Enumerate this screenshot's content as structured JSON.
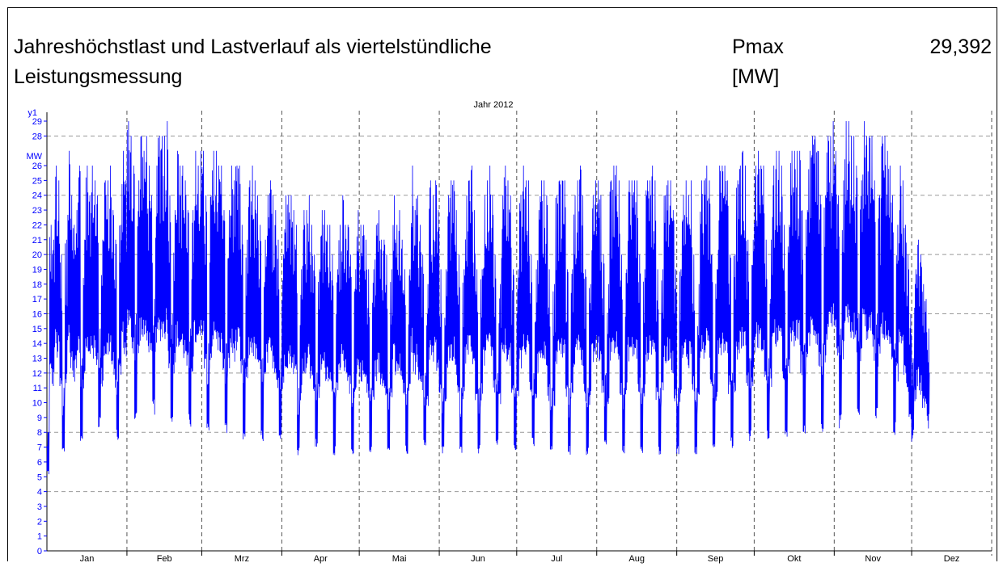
{
  "header": {
    "title_line1": "Jahreshöchstlast und Lastverlauf als viertelstündliche",
    "title_line2": "Leistungsmessung",
    "pmax_label": "Pmax",
    "pmax_unit": "[MW]",
    "pmax_value": "29,392"
  },
  "chart_data": {
    "type": "line",
    "title": "Jahr 2012",
    "ylabel": "y1",
    "yunit": "MW",
    "ylim": [
      0,
      30
    ],
    "yticks": [
      0,
      1,
      2,
      3,
      4,
      5,
      6,
      7,
      8,
      9,
      10,
      11,
      12,
      13,
      14,
      15,
      16,
      17,
      18,
      19,
      20,
      21,
      22,
      23,
      24,
      25,
      26,
      28,
      29
    ],
    "xlim": [
      "2012-01-01",
      "2012-12-31"
    ],
    "xticks": [
      "Jan",
      "Feb",
      "Mrz",
      "Apr",
      "Mai",
      "Jun",
      "Jul",
      "Aug",
      "Sep",
      "Okt",
      "Nov",
      "Dez"
    ],
    "month_days": [
      31,
      29,
      31,
      30,
      31,
      30,
      31,
      31,
      30,
      31,
      30,
      31
    ],
    "grid": true,
    "series": [
      {
        "values": [
          8,
          22,
          21,
          26,
          25,
          20,
          11,
          21,
          27,
          24,
          22,
          23,
          26,
          13,
          21,
          26,
          24,
          26,
          25,
          24,
          15,
          21,
          25,
          25,
          26,
          23,
          21,
          13,
          22,
          27,
          25,
          29,
          28,
          26,
          16,
          25,
          28,
          27,
          28,
          26,
          24,
          17,
          26,
          28,
          28,
          28,
          29,
          24,
          16,
          23,
          27,
          26,
          26,
          25,
          23,
          15,
          23,
          27,
          26,
          27,
          27,
          24,
          14,
          24,
          27,
          27,
          26,
          26,
          23,
          14,
          23,
          26,
          25,
          26,
          26,
          22,
          13,
          21,
          25,
          26,
          25,
          24,
          22,
          13,
          21,
          24,
          25,
          24,
          23,
          21,
          13,
          20,
          24,
          24,
          24,
          23,
          22,
          11,
          19,
          23,
          23,
          24,
          22,
          20,
          12,
          19,
          23,
          23,
          22,
          22,
          20,
          11,
          19,
          22,
          24,
          22,
          22,
          20,
          11,
          19,
          23,
          22,
          22,
          21,
          19,
          11,
          19,
          22,
          23,
          21,
          21,
          20,
          11,
          19,
          24,
          22,
          23,
          21,
          19,
          11,
          19,
          26,
          23,
          24,
          22,
          20,
          12,
          18,
          25,
          24,
          25,
          23,
          19,
          11,
          19,
          24,
          25,
          25,
          23,
          20,
          11,
          19,
          24,
          25,
          26,
          23,
          19,
          11,
          19,
          24,
          25,
          26,
          24,
          20,
          12,
          18,
          24,
          26,
          25,
          24,
          19,
          11,
          19,
          24,
          26,
          25,
          25,
          20,
          12,
          19,
          23,
          25,
          25,
          24,
          19,
          11,
          18,
          24,
          25,
          25,
          25,
          19,
          11,
          19,
          24,
          25,
          26,
          24,
          19,
          11,
          18,
          24,
          25,
          25,
          24,
          20,
          12,
          18,
          25,
          26,
          26,
          25,
          20,
          11,
          19,
          25,
          25,
          25,
          25,
          20,
          11,
          19,
          25,
          25,
          26,
          25,
          19,
          11,
          19,
          24,
          25,
          25,
          23,
          19,
          11,
          19,
          24,
          25,
          24,
          25,
          20,
          11,
          18,
          25,
          25,
          26,
          25,
          20,
          12,
          19,
          26,
          26,
          26,
          25,
          20,
          12,
          20,
          25,
          26,
          27,
          26,
          21,
          13,
          21,
          26,
          27,
          26,
          26,
          21,
          13,
          21,
          26,
          27,
          27,
          26,
          22,
          13,
          22,
          27,
          27,
          27,
          27,
          23,
          14,
          23,
          27,
          28,
          28,
          27,
          24,
          14,
          24,
          28,
          28,
          29,
          27,
          24,
          15,
          25,
          29,
          29,
          28,
          28,
          26,
          16,
          25,
          29,
          28,
          28,
          28,
          25,
          16,
          24,
          28,
          28,
          27,
          26,
          24,
          14,
          22,
          26,
          25,
          22,
          20,
          16,
          13,
          19,
          21,
          20,
          18,
          17,
          15
        ]
      }
    ]
  }
}
